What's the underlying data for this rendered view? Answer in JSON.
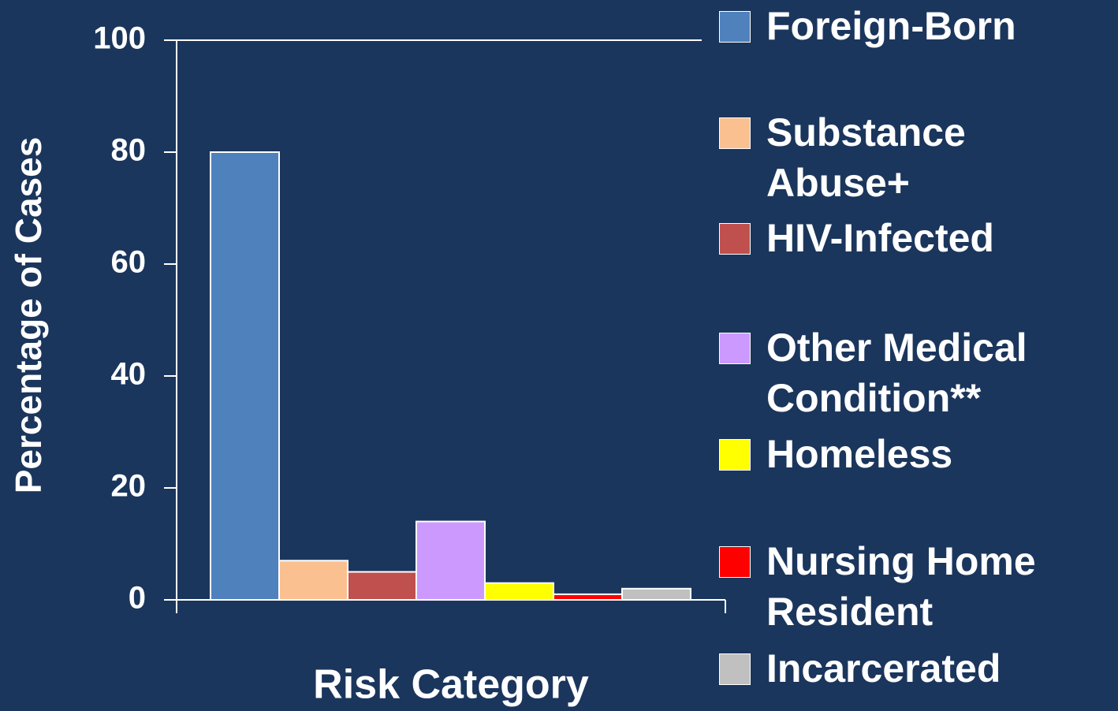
{
  "chart_data": {
    "type": "bar",
    "y_label": "Percentage of Cases",
    "x_label": "Risk Category",
    "categories": [
      null
    ],
    "series": [
      {
        "name": "Foreign-Born",
        "color": "#4f81bd",
        "values": [
          80
        ]
      },
      {
        "name": "Substance Abuse+",
        "color": "#fac090",
        "values": [
          7
        ]
      },
      {
        "name": "HIV-Infected",
        "color": "#c0504d",
        "values": [
          5
        ]
      },
      {
        "name": "Other Medical Condition**",
        "color": "#cc99ff",
        "values": [
          14
        ]
      },
      {
        "name": "Homeless",
        "color": "#ffff00",
        "values": [
          3
        ]
      },
      {
        "name": "Nursing Home Resident",
        "color": "#ff0000",
        "values": [
          1
        ]
      },
      {
        "name": "Incarcerated",
        "color": "#c0c0c0",
        "values": [
          2
        ]
      }
    ],
    "ylim": [
      0,
      100
    ],
    "yticks": [
      0,
      20,
      40,
      60,
      80,
      100
    ],
    "grid": false,
    "legend": "right"
  }
}
